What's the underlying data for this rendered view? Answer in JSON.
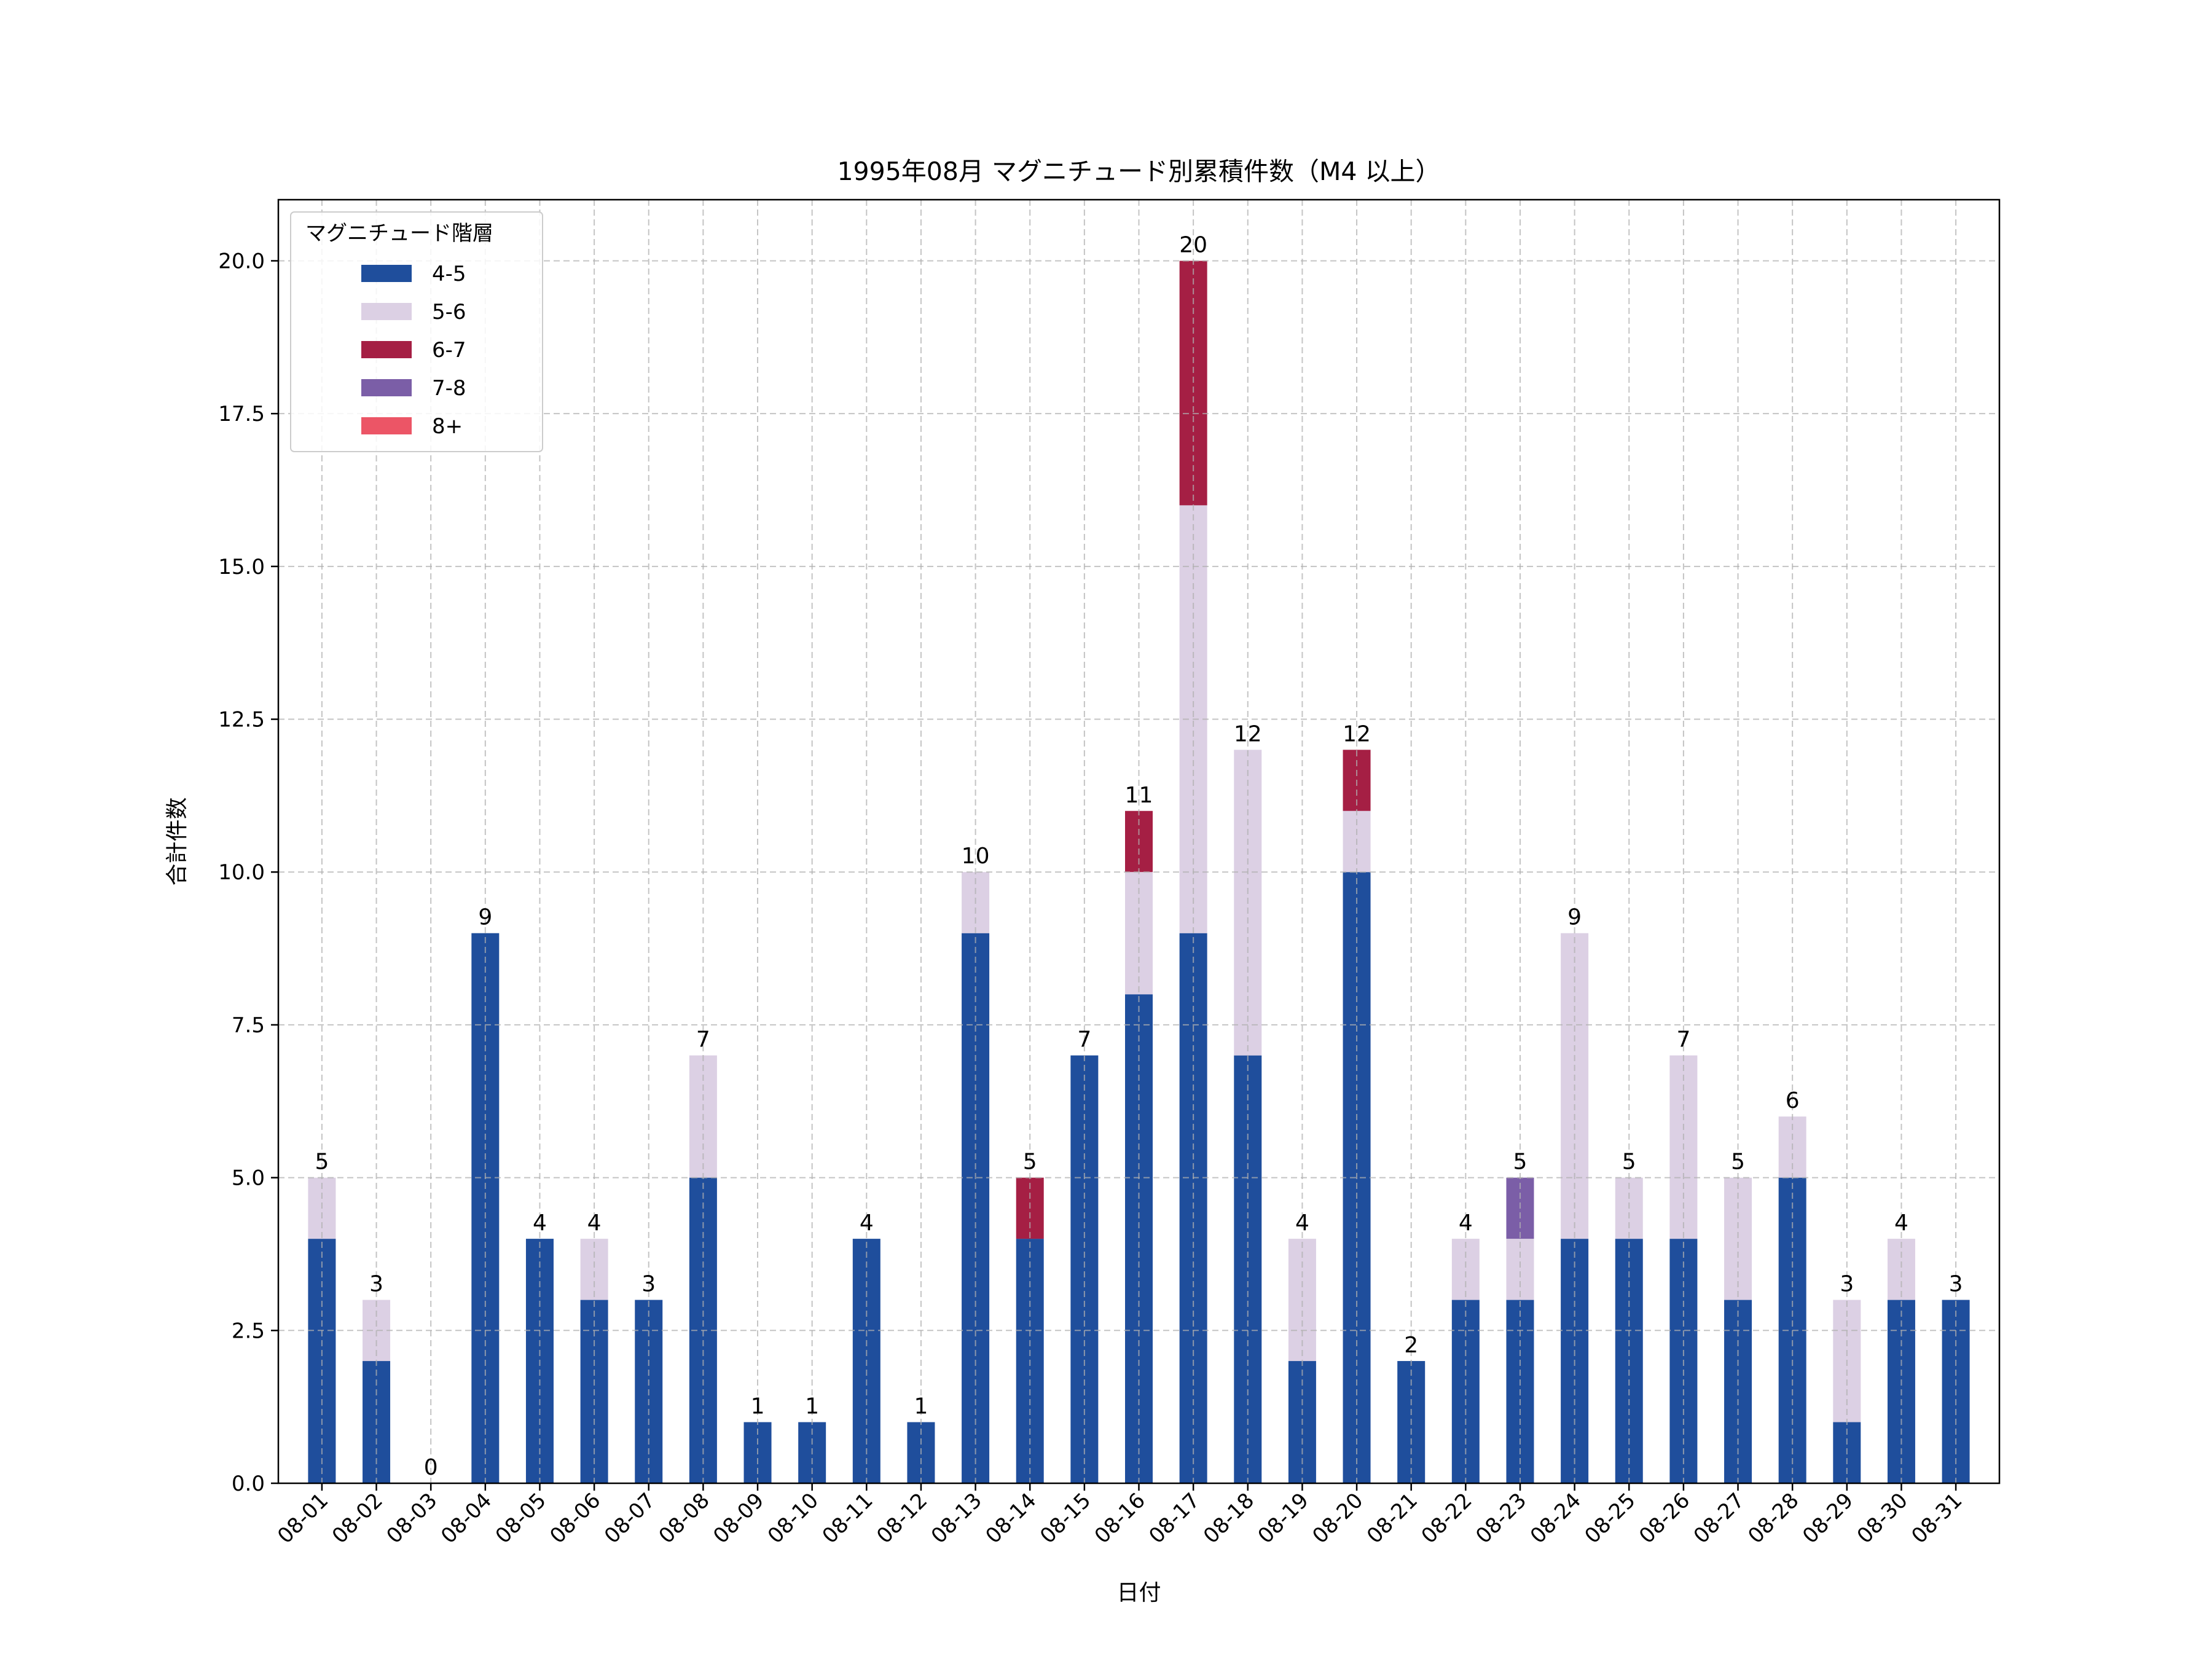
{
  "chart_data": {
    "type": "bar",
    "stacked": true,
    "title": "1995年08月 マグニチュード別累積件数（M4 以上）",
    "xlabel": "日付",
    "ylabel": "合計件数",
    "ylim": [
      0,
      21
    ],
    "yticks": [
      0,
      2.5,
      5,
      7.5,
      10,
      12.5,
      15,
      17.5,
      20
    ],
    "ytick_labels": [
      "0.0",
      "2.5",
      "5.0",
      "7.5",
      "10.0",
      "12.5",
      "15.0",
      "17.5",
      "20.0"
    ],
    "grid": true,
    "legend": {
      "title": "マグニチュード階層",
      "placement": "top-left"
    },
    "categories": [
      "08-01",
      "08-02",
      "08-03",
      "08-04",
      "08-05",
      "08-06",
      "08-07",
      "08-08",
      "08-09",
      "08-10",
      "08-11",
      "08-12",
      "08-13",
      "08-14",
      "08-15",
      "08-16",
      "08-17",
      "08-18",
      "08-19",
      "08-20",
      "08-21",
      "08-22",
      "08-23",
      "08-24",
      "08-25",
      "08-26",
      "08-27",
      "08-28",
      "08-29",
      "08-30",
      "08-31"
    ],
    "series": [
      {
        "name": "4-5",
        "color": "#1f4e9c",
        "values": [
          4,
          2,
          0,
          9,
          4,
          3,
          3,
          5,
          1,
          1,
          4,
          1,
          9,
          4,
          7,
          8,
          9,
          7,
          2,
          10,
          2,
          3,
          3,
          4,
          4,
          4,
          3,
          5,
          1,
          3,
          3
        ]
      },
      {
        "name": "5-6",
        "color": "#dcd0e4",
        "values": [
          1,
          1,
          0,
          0,
          0,
          1,
          0,
          2,
          0,
          0,
          0,
          0,
          1,
          0,
          0,
          2,
          7,
          5,
          2,
          1,
          0,
          1,
          1,
          5,
          1,
          3,
          2,
          1,
          2,
          1,
          0
        ]
      },
      {
        "name": "6-7",
        "color": "#a51f44",
        "values": [
          0,
          0,
          0,
          0,
          0,
          0,
          0,
          0,
          0,
          0,
          0,
          0,
          0,
          1,
          0,
          1,
          4,
          0,
          0,
          1,
          0,
          0,
          0,
          0,
          0,
          0,
          0,
          0,
          0,
          0,
          0
        ]
      },
      {
        "name": "7-8",
        "color": "#7b5ea7",
        "values": [
          0,
          0,
          0,
          0,
          0,
          0,
          0,
          0,
          0,
          0,
          0,
          0,
          0,
          0,
          0,
          0,
          0,
          0,
          0,
          0,
          0,
          0,
          1,
          0,
          0,
          0,
          0,
          0,
          0,
          0,
          0
        ]
      },
      {
        "name": "8+",
        "color": "#ec5566",
        "values": [
          0,
          0,
          0,
          0,
          0,
          0,
          0,
          0,
          0,
          0,
          0,
          0,
          0,
          0,
          0,
          0,
          0,
          0,
          0,
          0,
          0,
          0,
          0,
          0,
          0,
          0,
          0,
          0,
          0,
          0,
          0
        ]
      }
    ],
    "totals": [
      5,
      3,
      0,
      9,
      4,
      4,
      3,
      7,
      1,
      1,
      4,
      1,
      10,
      5,
      7,
      11,
      20,
      12,
      4,
      12,
      2,
      4,
      5,
      9,
      5,
      7,
      5,
      6,
      3,
      4,
      3
    ]
  }
}
